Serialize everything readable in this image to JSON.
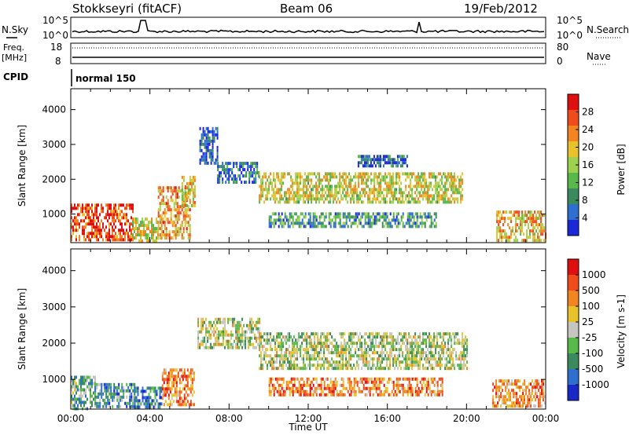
{
  "header": {
    "station": "Stokkseyri (fitACF)",
    "beam": "Beam 06",
    "date": "19/Feb/2012"
  },
  "sky_panel": {
    "left_label": "N.Sky",
    "right_label": "N.Search",
    "left_ticks": [
      "10^5",
      "10^0"
    ],
    "right_ticks": [
      "10^5",
      "10^0"
    ]
  },
  "freq_panel": {
    "label_line1": "Freq.",
    "label_line2": "[MHz]",
    "right_label": "Nave",
    "left_ticks": [
      "18",
      "8"
    ],
    "right_ticks": [
      "80",
      "0"
    ]
  },
  "cpid": {
    "label": "CPID",
    "value": "normal 150"
  },
  "chart_data": [
    {
      "type": "heatmap",
      "title": "",
      "ylabel": "Slant Range [km]",
      "xlabel": "",
      "ylim": [
        180,
        4600
      ],
      "xlim_hours": [
        0,
        24
      ],
      "yticks": [
        "1000",
        "2000",
        "3000",
        "4000"
      ],
      "colorbar": {
        "label": "Power [dB]",
        "range": [
          0,
          32
        ],
        "ticks": [
          "4",
          "8",
          "12",
          "16",
          "20",
          "24",
          "28"
        ],
        "colors": [
          "#1a28d8",
          "#2f6fd0",
          "#3b8a5e",
          "#58b84a",
          "#9ed24e",
          "#e8c22a",
          "#f2851f",
          "#f04b1a",
          "#e00f0f"
        ]
      },
      "regions": [
        {
          "t0": 0.0,
          "t1": 3.1,
          "r0": 230,
          "r1": 1300,
          "level": 0.85
        },
        {
          "t0": 3.1,
          "t1": 4.4,
          "r0": 230,
          "r1": 900,
          "level": 0.55
        },
        {
          "t0": 4.4,
          "t1": 6.0,
          "r0": 300,
          "r1": 1800,
          "level": 0.7
        },
        {
          "t0": 5.6,
          "t1": 6.3,
          "r0": 1200,
          "r1": 2100,
          "level": 0.6
        },
        {
          "t0": 6.5,
          "t1": 7.4,
          "r0": 2500,
          "r1": 3500,
          "level": 0.1
        },
        {
          "t0": 7.4,
          "t1": 9.5,
          "r0": 1900,
          "r1": 2500,
          "level": 0.15
        },
        {
          "t0": 9.5,
          "t1": 19.8,
          "r0": 1300,
          "r1": 2200,
          "level": 0.55
        },
        {
          "t0": 10.0,
          "t1": 18.5,
          "r0": 650,
          "r1": 1050,
          "level": 0.3
        },
        {
          "t0": 14.5,
          "t1": 17.0,
          "r0": 2400,
          "r1": 2700,
          "level": 0.15
        },
        {
          "t0": 21.5,
          "t1": 24.0,
          "r0": 230,
          "r1": 1100,
          "level": 0.65
        }
      ]
    },
    {
      "type": "heatmap",
      "title": "",
      "ylabel": "Slant Range [km]",
      "xlabel": "Time UT",
      "ylim": [
        180,
        4600
      ],
      "xlim_hours": [
        0,
        24
      ],
      "yticks": [
        "1000",
        "2000",
        "3000",
        "4000"
      ],
      "xticks": [
        "00:00",
        "04:00",
        "08:00",
        "12:00",
        "16:00",
        "20:00",
        "00:00"
      ],
      "colorbar": {
        "label": "Velocity [m s-1]",
        "ticks": [
          "1000",
          "500",
          "100",
          "25",
          "-25",
          "-100",
          "-500",
          "-1000"
        ],
        "colors": [
          "#1a28c8",
          "#2f6fd0",
          "#3b8a5e",
          "#58b84a",
          "#c6c6c0",
          "#e8c22a",
          "#f2851f",
          "#f04b1a",
          "#e00f0f"
        ]
      },
      "regions": [
        {
          "t0": 0.0,
          "t1": 1.2,
          "r0": 230,
          "r1": 1100,
          "level": 0.35
        },
        {
          "t0": 1.2,
          "t1": 3.2,
          "r0": 230,
          "r1": 900,
          "level": 0.3
        },
        {
          "t0": 3.2,
          "t1": 4.6,
          "r0": 230,
          "r1": 800,
          "level": 0.25
        },
        {
          "t0": 4.6,
          "t1": 6.2,
          "r0": 300,
          "r1": 1300,
          "level": 0.75
        },
        {
          "t0": 6.4,
          "t1": 9.5,
          "r0": 1900,
          "r1": 2700,
          "level": 0.48
        },
        {
          "t0": 9.5,
          "t1": 20.0,
          "r0": 1300,
          "r1": 2300,
          "level": 0.48
        },
        {
          "t0": 10.0,
          "t1": 18.8,
          "r0": 600,
          "r1": 1050,
          "level": 0.75
        },
        {
          "t0": 21.3,
          "t1": 24.0,
          "r0": 230,
          "r1": 1000,
          "level": 0.7
        }
      ]
    }
  ]
}
